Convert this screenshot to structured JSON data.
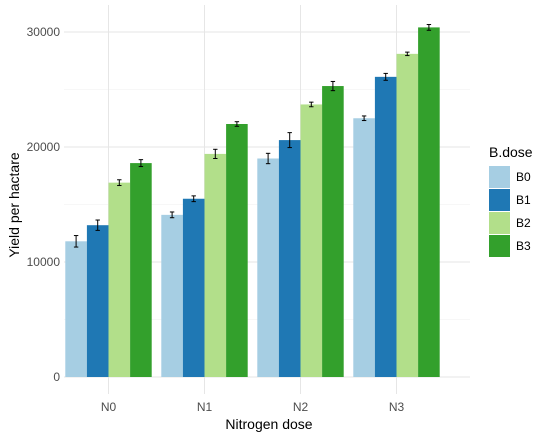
{
  "chart_data": {
    "type": "bar",
    "title": "",
    "xlabel": "Nitrogen dose",
    "ylabel": "Yield per hactare",
    "categories": [
      "N0",
      "N1",
      "N2",
      "N3"
    ],
    "ylim": [
      0,
      32000
    ],
    "yticks": [
      0,
      10000,
      20000,
      30000
    ],
    "grid": true,
    "legend": {
      "title": "B.dose",
      "position": "right"
    },
    "series": [
      {
        "name": "B0",
        "color": "#a6cee3",
        "values": [
          11800,
          14100,
          19000,
          22500
        ],
        "errors": [
          500,
          250,
          450,
          200
        ]
      },
      {
        "name": "B1",
        "color": "#1f78b4",
        "values": [
          13200,
          15500,
          20600,
          26100
        ],
        "errors": [
          450,
          250,
          650,
          300
        ]
      },
      {
        "name": "B2",
        "color": "#b2df8a",
        "values": [
          16900,
          19400,
          23700,
          28100
        ],
        "errors": [
          250,
          400,
          200,
          150
        ]
      },
      {
        "name": "B3",
        "color": "#33a02c",
        "values": [
          18600,
          22000,
          25300,
          30400
        ],
        "errors": [
          300,
          200,
          400,
          250
        ]
      }
    ]
  }
}
